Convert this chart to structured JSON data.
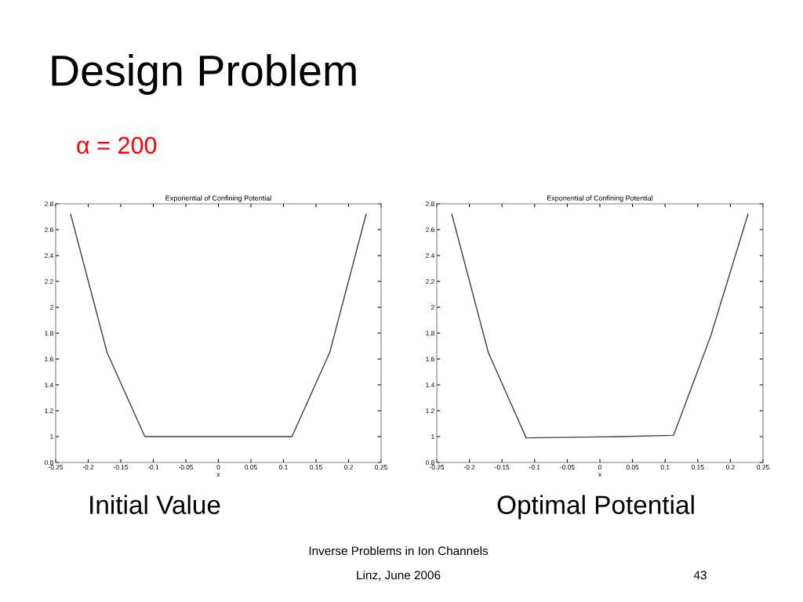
{
  "chart_data": [
    {
      "type": "line",
      "title": "Exponential of Confining Potential",
      "xlabel": "x",
      "annotations": [
        "Design Problem",
        "α = 200",
        "Initial Value",
        "Inverse Problems in Ion Channels",
        "Linz, June 2006",
        "43"
      ],
      "x": [
        -0.227,
        -0.171,
        -0.113,
        0.113,
        0.171,
        0.227
      ],
      "series": [
        {
          "color": "#404040",
          "values": [
            2.72,
            1.65,
            1.0,
            1.0,
            1.65,
            2.72
          ]
        }
      ],
      "xlim": [
        -0.25,
        0.25
      ],
      "xticks": [
        -0.25,
        -0.2,
        -0.15,
        -0.1,
        -0.05,
        0,
        0.05,
        0.1,
        0.15,
        0.2,
        0.25
      ],
      "ylim": [
        0.8,
        2.8
      ],
      "yticks": [
        0.8,
        1,
        1.2,
        1.4,
        1.6,
        1.8,
        2,
        2.2,
        2.4,
        2.6,
        2.8
      ]
    },
    {
      "type": "line",
      "title": "Exponential of Confining Potential",
      "xlabel": "x",
      "annotations": [
        "Optimal Potential"
      ],
      "x": [
        -0.227,
        -0.171,
        -0.113,
        0.03,
        0.113,
        0.17,
        0.227
      ],
      "series": [
        {
          "color": "#404040",
          "values": [
            2.72,
            1.65,
            0.99,
            1.0,
            1.01,
            1.78,
            2.72
          ]
        }
      ],
      "xlim": [
        -0.25,
        0.25
      ],
      "xticks": [
        -0.25,
        -0.2,
        -0.15,
        -0.1,
        -0.05,
        0,
        0.05,
        0.1,
        0.15,
        0.2,
        0.25
      ],
      "ylim": [
        0.8,
        2.8
      ],
      "yticks": [
        0.8,
        1,
        1.2,
        1.4,
        1.6,
        1.8,
        2,
        2.2,
        2.4,
        2.6,
        2.8
      ]
    }
  ]
}
